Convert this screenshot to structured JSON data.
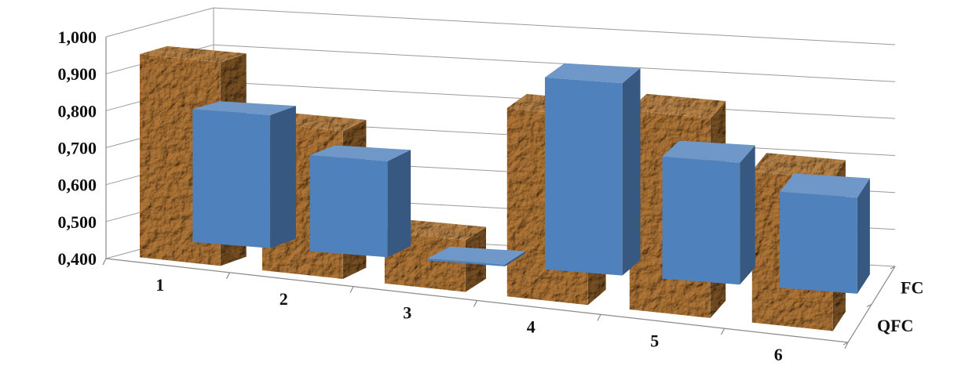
{
  "chart_data": {
    "type": "bar",
    "title": "",
    "xlabel": "",
    "ylabel": "",
    "categories": [
      "1",
      "2",
      "3",
      "4",
      "5",
      "6"
    ],
    "series": [
      {
        "name": "FC",
        "values": [
          0.76,
          0.66,
          0.405,
          0.92,
          0.73,
          0.66
        ],
        "color": "#4f81bd"
      },
      {
        "name": "QFC",
        "values": [
          0.95,
          0.8,
          0.54,
          0.91,
          0.94,
          0.81
        ],
        "color": "#c49a62"
      }
    ],
    "ylim": [
      0.4,
      1.0
    ],
    "yticks": [
      "0,400",
      "0,500",
      "0,600",
      "0,700",
      "0,800",
      "0,900",
      "1,000"
    ],
    "grid": true,
    "style": "3d-column"
  }
}
